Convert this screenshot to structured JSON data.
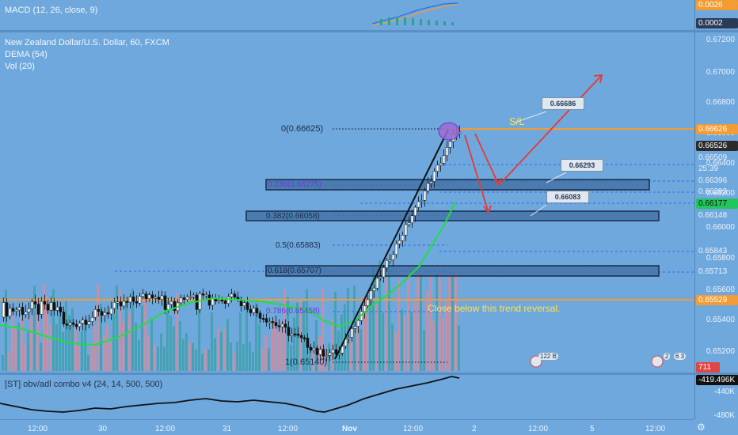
{
  "macd": {
    "legend": "MACD (12, 26, close, 9)",
    "tag_top": "0.0026",
    "tag_bottom": "0.0002"
  },
  "main": {
    "symbol_line": "New Zealand Dollar/U.S. Dollar, 60, FXCM",
    "dema_legend": "DEMA (54)",
    "vol_legend": "Vol (20)",
    "sl_label": "S/L",
    "trend_note": "Close below this trend reversal.",
    "fib_levels": [
      "0(0.66625)",
      "0.236(0.66275)",
      "0.382(0.66058)",
      "0.5(0.65883)",
      "0.618(0.65707)",
      "0.786(0.65458)",
      "1(0.65140)"
    ],
    "callouts": [
      "0.66686",
      "0.66293",
      "0.66083"
    ],
    "event_badges": [
      "122 B",
      "2",
      "6 3"
    ]
  },
  "price_axis": {
    "ticks": [
      "0.67200",
      "0.67000",
      "0.66800",
      "0.66600",
      "0.66400",
      "0.66200",
      "0.66000",
      "0.65800",
      "0.65600",
      "0.65400",
      "0.65200"
    ],
    "tags": [
      {
        "value": "0.66626",
        "color": "#f39c33",
        "text": "#ffffff"
      },
      {
        "value": "0.66526",
        "color": "#2b2b2b",
        "text": "#ffffff"
      },
      {
        "value": "0.66509",
        "color": "#6fa8dc",
        "text": "#eef4ff"
      },
      {
        "value": "25:39",
        "color": "#6fa8dc",
        "text": "#eef4ff"
      },
      {
        "value": "0.66396",
        "color": "#6fa8dc",
        "text": "#eef4ff"
      },
      {
        "value": "0.66293",
        "color": "#6fa8dc",
        "text": "#eef4ff"
      },
      {
        "value": "0.66177",
        "color": "#22c55e",
        "text": "#0b1a0b"
      },
      {
        "value": "0.66148",
        "color": "#6fa8dc",
        "text": "#eef4ff"
      },
      {
        "value": "0.65843",
        "color": "#6fa8dc",
        "text": "#eef4ff"
      },
      {
        "value": "0.65713",
        "color": "#6fa8dc",
        "text": "#eef4ff"
      },
      {
        "value": "0.65529",
        "color": "#f39c33",
        "text": "#ffffff"
      },
      {
        "value": "711",
        "color": "#e04646",
        "text": "#ffffff"
      }
    ]
  },
  "obv": {
    "legend": "[ST] obv/adl combo v4 (24, 14, 500, 500)",
    "tag": "-419.496K",
    "tick": "-440K",
    "tick2": "-480K"
  },
  "time_axis": [
    "12:00",
    "30",
    "12:00",
    "31",
    "12:00",
    "Nov",
    "12:00",
    "2",
    "12:00",
    "5",
    "12:00"
  ],
  "colors": {
    "background": "#6fa8dc",
    "up_candle": "#ffffff",
    "down_candle": "#111111",
    "dema": "#22dd44",
    "orange_line": "#f39c33",
    "fib_box": "#3d6ea3",
    "arrow_red": "#e53935",
    "sl_text": "#ffe14d",
    "note_text": "#ffe14d"
  },
  "chart_data": {
    "type": "candlestick",
    "symbol": "NZDUSD",
    "timeframe": "60",
    "ylim": [
      0.6508,
      0.6728
    ],
    "fib_retracement": [
      {
        "ratio": 0,
        "price": 0.66625
      },
      {
        "ratio": 0.236,
        "price": 0.66275
      },
      {
        "ratio": 0.382,
        "price": 0.66058
      },
      {
        "ratio": 0.5,
        "price": 0.65883
      },
      {
        "ratio": 0.618,
        "price": 0.65707
      },
      {
        "ratio": 0.786,
        "price": 0.65458
      },
      {
        "ratio": 1,
        "price": 0.6514
      }
    ],
    "horizontal_lines": [
      0.66626,
      0.65529
    ],
    "callouts": [
      0.66686,
      0.66293,
      0.66083
    ],
    "last_price": 0.66526
  }
}
